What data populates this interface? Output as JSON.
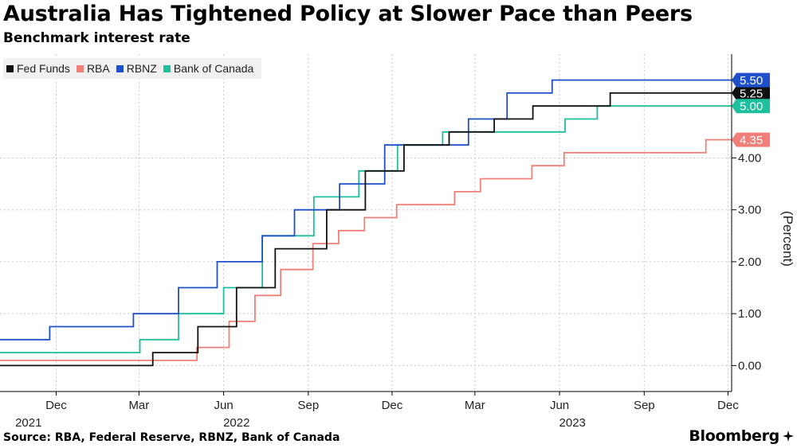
{
  "chart_data": {
    "type": "line",
    "step": true,
    "title": "Australia Has Tightened Policy at Slower Pace than Peers",
    "subtitle": "Benchmark interest rate",
    "ylabel": "(Percent)",
    "source": "Source: RBA, Federal Reserve, RBNZ, Bank of Canada",
    "brand": "Bloomberg",
    "xlim": [
      "2021-10-01",
      "2023-12-05"
    ],
    "ylim": [
      -0.5,
      6.0
    ],
    "yticks": [
      0,
      1,
      2,
      3,
      4
    ],
    "ytick_labels": [
      "0.00",
      "1.00",
      "2.00",
      "3.00",
      "4.00"
    ],
    "xticks": [
      {
        "date": "2021-12-01",
        "label": "Dec"
      },
      {
        "date": "2022-03-01",
        "label": "Mar"
      },
      {
        "date": "2022-06-01",
        "label": "Jun"
      },
      {
        "date": "2022-09-01",
        "label": "Sep"
      },
      {
        "date": "2022-12-01",
        "label": "Dec"
      },
      {
        "date": "2023-03-01",
        "label": "Mar"
      },
      {
        "date": "2023-06-01",
        "label": "Jun"
      },
      {
        "date": "2023-09-01",
        "label": "Sep"
      },
      {
        "date": "2023-12-01",
        "label": "Dec"
      }
    ],
    "year_labels": [
      {
        "date": "2021-11-01",
        "label": "2021"
      },
      {
        "date": "2022-06-15",
        "label": "2022"
      },
      {
        "date": "2023-06-15",
        "label": "2023"
      }
    ],
    "grid": true,
    "legend_position": "top-left",
    "series": [
      {
        "name": "Fed Funds",
        "color": "#111111",
        "last_label": "5.25",
        "steps": [
          [
            "2021-10-01",
            0.0
          ],
          [
            "2022-03-16",
            0.25
          ],
          [
            "2022-05-04",
            0.75
          ],
          [
            "2022-06-15",
            1.5
          ],
          [
            "2022-07-27",
            2.25
          ],
          [
            "2022-09-21",
            3.0
          ],
          [
            "2022-11-02",
            3.75
          ],
          [
            "2022-12-14",
            4.25
          ],
          [
            "2023-02-01",
            4.5
          ],
          [
            "2023-03-22",
            4.75
          ],
          [
            "2023-05-03",
            5.0
          ],
          [
            "2023-07-26",
            5.25
          ],
          [
            "2023-12-05",
            5.25
          ]
        ]
      },
      {
        "name": "RBA",
        "color": "#f07f78",
        "last_label": "4.35",
        "steps": [
          [
            "2021-10-01",
            0.1
          ],
          [
            "2022-05-03",
            0.35
          ],
          [
            "2022-06-07",
            0.85
          ],
          [
            "2022-07-05",
            1.35
          ],
          [
            "2022-08-02",
            1.85
          ],
          [
            "2022-09-06",
            2.35
          ],
          [
            "2022-10-04",
            2.6
          ],
          [
            "2022-11-01",
            2.85
          ],
          [
            "2022-12-06",
            3.1
          ],
          [
            "2023-02-07",
            3.35
          ],
          [
            "2023-03-07",
            3.6
          ],
          [
            "2023-05-02",
            3.85
          ],
          [
            "2023-06-06",
            4.1
          ],
          [
            "2023-11-07",
            4.35
          ],
          [
            "2023-12-05",
            4.35
          ]
        ]
      },
      {
        "name": "RBNZ",
        "color": "#1f4fc9",
        "last_label": "5.50",
        "steps": [
          [
            "2021-10-01",
            0.5
          ],
          [
            "2021-11-24",
            0.75
          ],
          [
            "2022-02-23",
            1.0
          ],
          [
            "2022-04-13",
            1.5
          ],
          [
            "2022-05-25",
            2.0
          ],
          [
            "2022-07-13",
            2.5
          ],
          [
            "2022-08-17",
            3.0
          ],
          [
            "2022-10-05",
            3.5
          ],
          [
            "2022-11-23",
            4.25
          ],
          [
            "2023-02-22",
            4.75
          ],
          [
            "2023-04-05",
            5.25
          ],
          [
            "2023-05-24",
            5.5
          ],
          [
            "2023-12-05",
            5.5
          ]
        ]
      },
      {
        "name": "Bank of Canada",
        "color": "#1dbf9c",
        "last_label": "5.00",
        "steps": [
          [
            "2021-10-01",
            0.25
          ],
          [
            "2022-03-02",
            0.5
          ],
          [
            "2022-04-13",
            1.0
          ],
          [
            "2022-06-01",
            1.5
          ],
          [
            "2022-07-13",
            2.5
          ],
          [
            "2022-09-07",
            3.25
          ],
          [
            "2022-10-26",
            3.75
          ],
          [
            "2022-12-07",
            4.25
          ],
          [
            "2023-01-25",
            4.5
          ],
          [
            "2023-06-07",
            4.75
          ],
          [
            "2023-07-12",
            5.0
          ],
          [
            "2023-12-05",
            5.0
          ]
        ]
      }
    ]
  }
}
